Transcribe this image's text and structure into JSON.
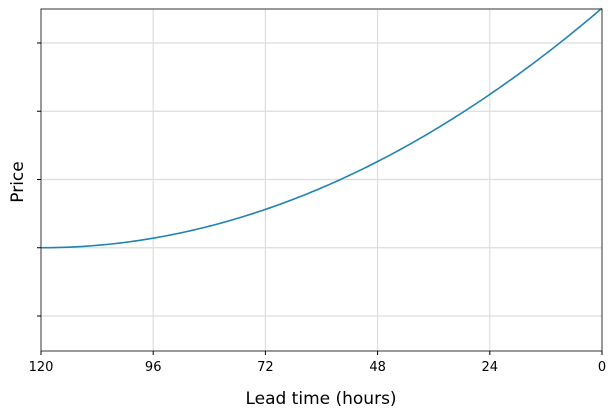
{
  "chart_data": {
    "type": "line",
    "title": "",
    "xlabel": "Lead time (hours)",
    "ylabel": "Price",
    "x": [
      120,
      96,
      72,
      48,
      24,
      0
    ],
    "x_ticks": [
      "120",
      "96",
      "72",
      "48",
      "24",
      "0"
    ],
    "x_inverted": true,
    "xlim": [
      120,
      0
    ],
    "y_ticks_labeled": false,
    "y_tick_count": 5,
    "ylim": [
      -0.5,
      4.51
    ],
    "grid": true,
    "legend": null,
    "series": [
      {
        "name": "Price",
        "color": "#1f83b4",
        "values": [
          1.0,
          1.15,
          1.58,
          2.29,
          3.26,
          4.51
        ]
      }
    ]
  },
  "colors": {
    "line": "#1f83b4",
    "grid": "#dddddd",
    "frame": "#333333"
  }
}
